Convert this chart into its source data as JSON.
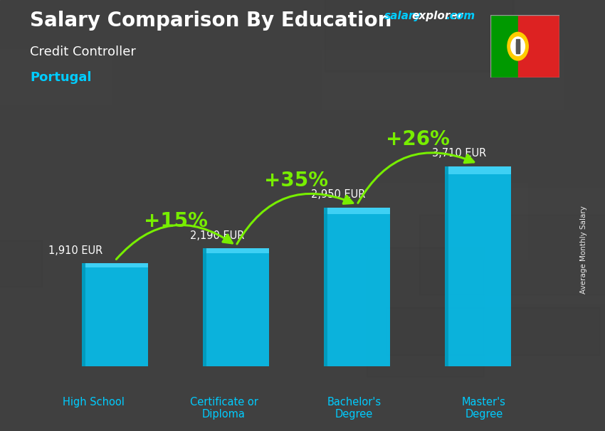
{
  "title": "Salary Comparison By Education",
  "subtitle1": "Credit Controller",
  "subtitle2": "Portugal",
  "categories": [
    "High School",
    "Certificate or\nDiploma",
    "Bachelor's\nDegree",
    "Master's\nDegree"
  ],
  "values": [
    1910,
    2190,
    2950,
    3710
  ],
  "value_labels": [
    "1,910 EUR",
    "2,190 EUR",
    "2,950 EUR",
    "3,710 EUR"
  ],
  "pct_labels": [
    "+15%",
    "+35%",
    "+26%"
  ],
  "bar_color": "#00ccff",
  "bar_color_dark": "#0099bb",
  "bar_color_light": "#55ddff",
  "bg_color": "#3a3a3a",
  "text_white": "#ffffff",
  "text_cyan": "#00ccff",
  "text_green": "#88ff00",
  "arrow_green": "#77ee00",
  "website_salary_color": "#00ccff",
  "website_explorer_color": "#ffffff",
  "website_com_color": "#00ccff",
  "ylabel_text": "Average Monthly Salary",
  "ylim_max": 4400,
  "bar_width": 0.55,
  "flag_green": "#009900",
  "flag_red": "#dd2222",
  "flag_yellow": "#ffcc00",
  "fig_width": 8.5,
  "fig_height": 6.06,
  "dpi": 100
}
